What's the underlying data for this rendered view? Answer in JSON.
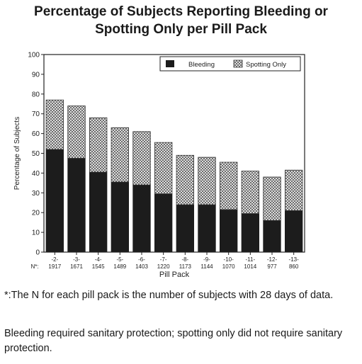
{
  "title_line1": "Percentage of Subjects Reporting Bleeding or",
  "title_line2": "Spotting Only per Pill Pack",
  "footnotes": {
    "n_note": "*:The N for each pill pack is the number of subjects with 28 days of data.",
    "definition": "Bleeding required sanitary protection; spotting only did not require sanitary protection."
  },
  "colors": {
    "bleeding": "#1c1c1c",
    "spotting_pattern": "#555555",
    "axis": "#222222"
  },
  "chart_data": {
    "type": "bar",
    "stacked": true,
    "title": "",
    "xlabel": "Pill Pack",
    "ylabel": "Percentage of Subjects",
    "ylim": [
      0,
      100
    ],
    "yticks": [
      0,
      10,
      20,
      30,
      40,
      50,
      60,
      70,
      80,
      90,
      100
    ],
    "grid": false,
    "legend_position": "top-right",
    "n_label": "N*:",
    "categories": [
      "-2-",
      "-3-",
      "-4-",
      "-5-",
      "-6-",
      "-7-",
      "-8-",
      "-9-",
      "-10-",
      "-11-",
      "-12-",
      "-13-"
    ],
    "n_values": [
      "1917",
      "1671",
      "1545",
      "1489",
      "1403",
      "1220",
      "1173",
      "1144",
      "1070",
      "1014",
      "977",
      "860"
    ],
    "series": [
      {
        "name": "Bleeding",
        "pattern": "solid",
        "values": [
          52,
          47.5,
          40.5,
          35.5,
          34,
          29.5,
          24,
          24,
          21.5,
          19.5,
          16,
          21
        ]
      },
      {
        "name": "Spotting Only",
        "pattern": "crosshatch",
        "values": [
          25,
          26.5,
          27.5,
          27.5,
          27,
          26,
          25,
          24,
          24,
          21.5,
          22,
          20.5
        ]
      }
    ]
  }
}
